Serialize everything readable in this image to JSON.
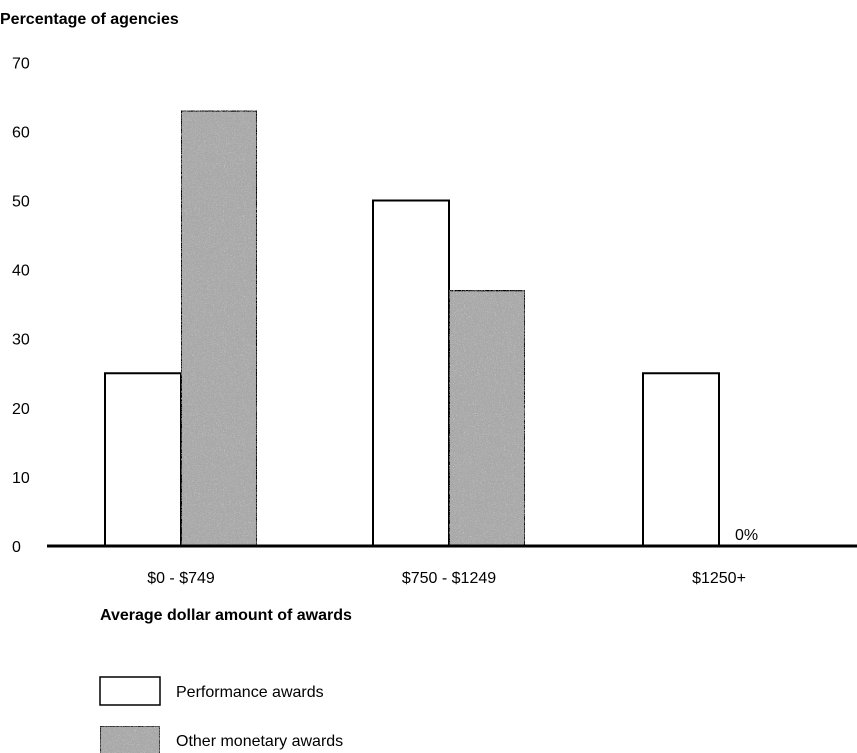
{
  "chart_data": {
    "type": "bar",
    "ylabel": "Percentage of agencies",
    "xlabel": "Average dollar amount of awards",
    "categories": [
      "$0 - $749",
      "$750 - $1249",
      "$1250+"
    ],
    "series": [
      {
        "name": "Performance awards",
        "values": [
          25,
          50,
          25
        ],
        "color": "#ffffff"
      },
      {
        "name": "Other monetary awards",
        "values": [
          63,
          37,
          0
        ],
        "color": "#a8a8a8"
      }
    ],
    "ylim": [
      0,
      70
    ],
    "yticks": [
      0,
      10,
      20,
      30,
      40,
      50,
      60,
      70
    ],
    "annotations": [
      {
        "text": "0%",
        "category": "$1250+",
        "series": "Other monetary awards"
      }
    ],
    "grid": false,
    "legend_position": "bottom-left"
  }
}
